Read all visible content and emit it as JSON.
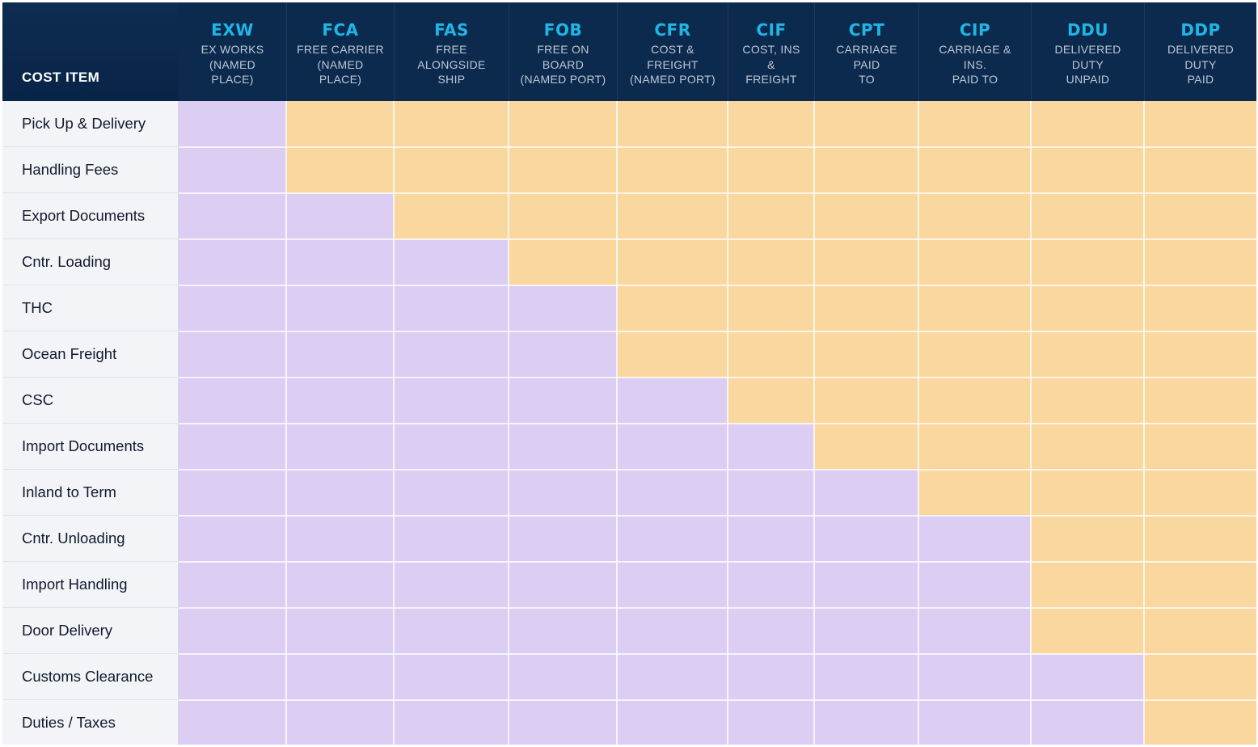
{
  "chart_data": {
    "type": "table",
    "corner_header": "COST ITEM",
    "columns": [
      {
        "code": "EXW",
        "desc": [
          "EX WORKS",
          "(NAMED",
          "PLACE)"
        ]
      },
      {
        "code": "FCA",
        "desc": [
          "FREE CARRIER",
          "(NAMED",
          "PLACE)"
        ]
      },
      {
        "code": "FAS",
        "desc": [
          "FREE",
          "ALONGSIDE",
          "SHIP"
        ]
      },
      {
        "code": "FOB",
        "desc": [
          "FREE ON",
          "BOARD",
          "(NAMED PORT)"
        ]
      },
      {
        "code": "CFR",
        "desc": [
          "COST &",
          "FREIGHT",
          "(NAMED PORT)"
        ]
      },
      {
        "code": "CIF",
        "desc": [
          "COST, INS",
          "&",
          "FREIGHT"
        ]
      },
      {
        "code": "CPT",
        "desc": [
          "CARRIAGE",
          "PAID",
          "TO"
        ]
      },
      {
        "code": "CIP",
        "desc": [
          "CARRIAGE &",
          "INS.",
          "PAID TO"
        ]
      },
      {
        "code": "DDU",
        "desc": [
          "DELIVERED",
          "DUTY",
          "UNPAID"
        ]
      },
      {
        "code": "DDP",
        "desc": [
          "DELIVERED",
          "DUTY",
          "PAID"
        ]
      }
    ],
    "rows": [
      "Pick Up & Delivery",
      "Handling Fees",
      "Export Documents",
      "Cntr. Loading",
      "THC",
      "Ocean Freight",
      "CSC",
      "Import Documents",
      "Inland to Term",
      "Cntr. Unloading",
      "Import Handling",
      "Door Delivery",
      "Customs Clearance",
      "Duties / Taxes"
    ],
    "cells": [
      [
        "purple",
        "orange",
        "orange",
        "orange",
        "orange",
        "orange",
        "orange",
        "orange",
        "orange",
        "orange"
      ],
      [
        "purple",
        "orange",
        "orange",
        "orange",
        "orange",
        "orange",
        "orange",
        "orange",
        "orange",
        "orange"
      ],
      [
        "purple",
        "purple",
        "orange",
        "orange",
        "orange",
        "orange",
        "orange",
        "orange",
        "orange",
        "orange"
      ],
      [
        "purple",
        "purple",
        "purple",
        "orange",
        "orange",
        "orange",
        "orange",
        "orange",
        "orange",
        "orange"
      ],
      [
        "purple",
        "purple",
        "purple",
        "purple",
        "orange",
        "orange",
        "orange",
        "orange",
        "orange",
        "orange"
      ],
      [
        "purple",
        "purple",
        "purple",
        "purple",
        "orange",
        "orange",
        "orange",
        "orange",
        "orange",
        "orange"
      ],
      [
        "purple",
        "purple",
        "purple",
        "purple",
        "purple",
        "orange",
        "orange",
        "orange",
        "orange",
        "orange"
      ],
      [
        "purple",
        "purple",
        "purple",
        "purple",
        "purple",
        "purple",
        "orange",
        "orange",
        "orange",
        "orange"
      ],
      [
        "purple",
        "purple",
        "purple",
        "purple",
        "purple",
        "purple",
        "purple",
        "orange",
        "orange",
        "orange"
      ],
      [
        "purple",
        "purple",
        "purple",
        "purple",
        "purple",
        "purple",
        "purple",
        "purple",
        "orange",
        "orange"
      ],
      [
        "purple",
        "purple",
        "purple",
        "purple",
        "purple",
        "purple",
        "purple",
        "purple",
        "orange",
        "orange"
      ],
      [
        "purple",
        "purple",
        "purple",
        "purple",
        "purple",
        "purple",
        "purple",
        "purple",
        "orange",
        "orange"
      ],
      [
        "purple",
        "purple",
        "purple",
        "purple",
        "purple",
        "purple",
        "purple",
        "purple",
        "purple",
        "orange"
      ],
      [
        "purple",
        "purple",
        "purple",
        "purple",
        "purple",
        "purple",
        "purple",
        "purple",
        "purple",
        "orange"
      ]
    ],
    "colors": {
      "purple": "#dccdf2",
      "orange": "#fad79f",
      "header_bg": "#0c2a4d",
      "code_text": "#1fb6e6",
      "desc_text": "#bdc8d6",
      "label_bg": "#f3f4f8"
    }
  }
}
